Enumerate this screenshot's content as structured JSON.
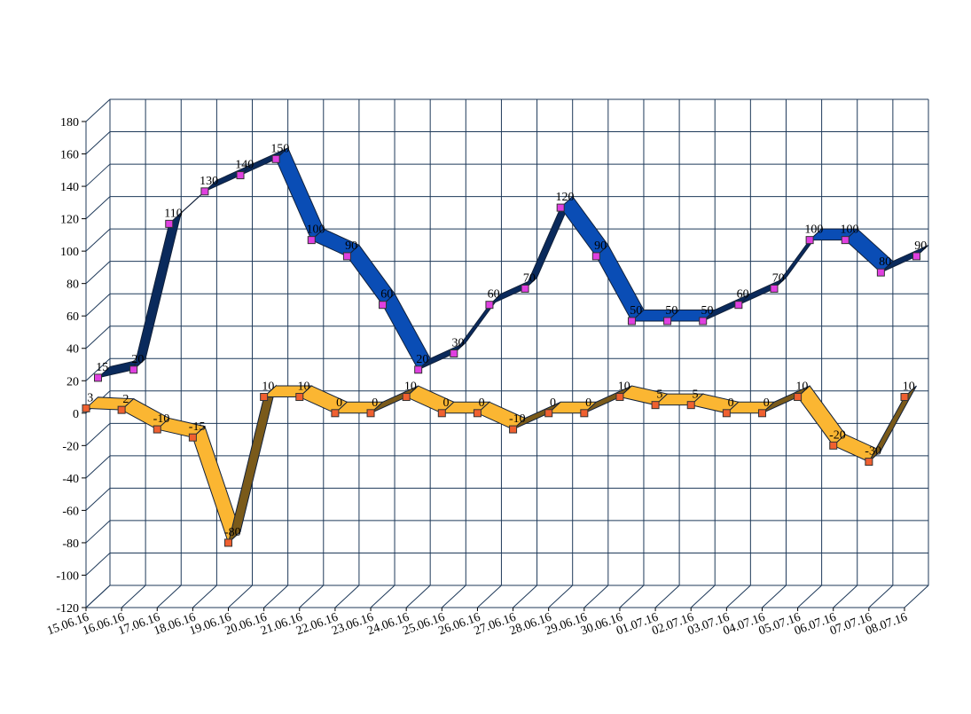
{
  "chart_data": {
    "type": "line3d",
    "categories": [
      "15.06.16",
      "16.06.16",
      "17.06.16",
      "18.06.16",
      "19.06.16",
      "20.06.16",
      "21.06.16",
      "22.06.16",
      "23.06.16",
      "24.06.16",
      "25.06.16",
      "26.06.16",
      "27.06.16",
      "28.06.16",
      "29.06.16",
      "30.06.16",
      "01.07.16",
      "02.07.16",
      "03.07.16",
      "04.07.16",
      "05.07.16",
      "06.07.16",
      "07.07.16",
      "08.07.16"
    ],
    "series": [
      {
        "color": "#0a4db5",
        "rise_color": "#0a2a5c",
        "marker_color": "#e040e0",
        "values": [
          15,
          20,
          110,
          130,
          140,
          150,
          100,
          90,
          60,
          20,
          30,
          60,
          70,
          120,
          90,
          50,
          50,
          50,
          60,
          70,
          100,
          100,
          80,
          90
        ]
      },
      {
        "color": "#fbb632",
        "rise_color": "#7a5a1a",
        "marker_color": "#f06030",
        "values": [
          3,
          2,
          -10,
          -15,
          -80,
          10,
          10,
          0,
          0,
          10,
          0,
          0,
          -10,
          0,
          0,
          10,
          5,
          5,
          0,
          0,
          10,
          -20,
          -30,
          10
        ]
      }
    ],
    "ylim": [
      -120,
      180
    ],
    "yticks": [
      -120,
      -100,
      -80,
      -60,
      -40,
      -20,
      0,
      20,
      40,
      60,
      80,
      100,
      120,
      140,
      160,
      180
    ],
    "grid": true
  }
}
